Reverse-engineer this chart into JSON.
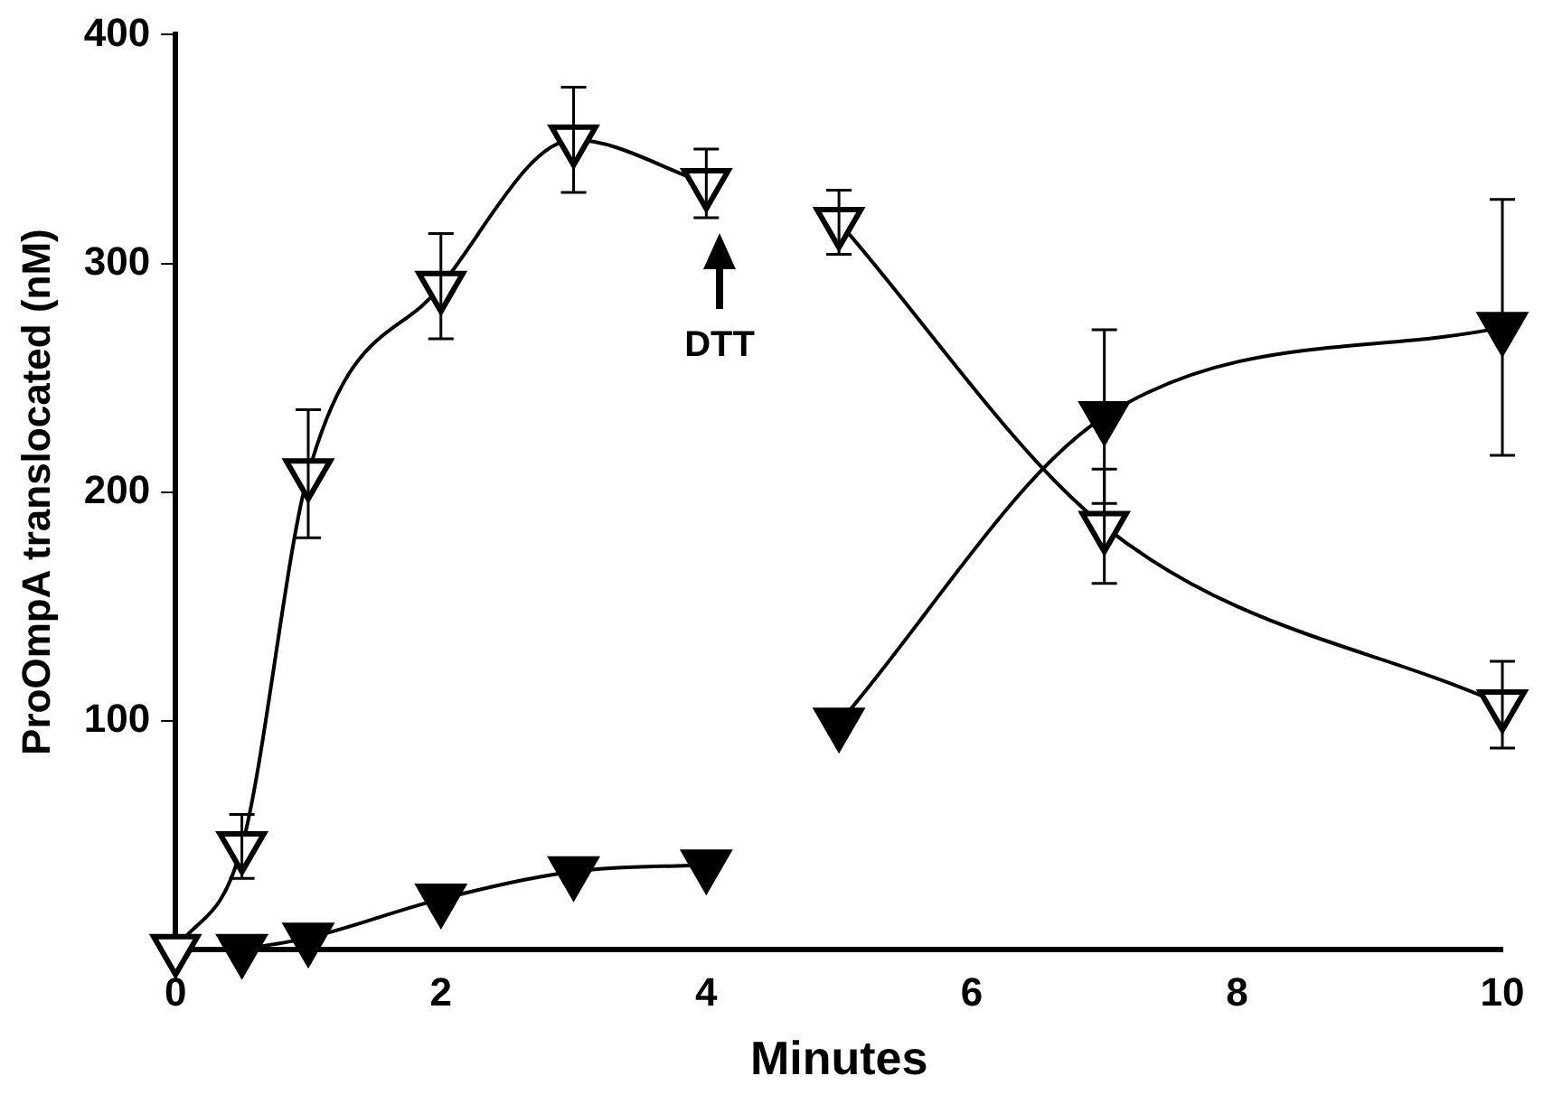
{
  "chart_data": {
    "type": "line",
    "xlabel": "Minutes",
    "ylabel": "ProOmpA translocated (nM)",
    "xlim": [
      0,
      10
    ],
    "xticks": [
      0,
      2,
      4,
      6,
      8,
      10
    ],
    "ylim": [
      0,
      400
    ],
    "yticks": [
      100,
      200,
      300,
      400
    ],
    "grid": false,
    "legend": false,
    "marker": "triangle",
    "line_style": "solid",
    "series": [
      {
        "color": "#ffffff",
        "x": [
          0,
          0.5,
          1,
          2,
          3,
          4
        ],
        "values": [
          0,
          45,
          208,
          290,
          354,
          335
        ],
        "errors": [
          null,
          14,
          28,
          23,
          23,
          15
        ]
      },
      {
        "color": "#000000",
        "x": [
          0.5,
          1,
          2,
          3,
          4
        ],
        "values": [
          0,
          5,
          22,
          34,
          37
        ]
      },
      {
        "color": "#ffffff",
        "x": [
          5,
          7,
          10
        ],
        "values": [
          318,
          185,
          107
        ],
        "errors": [
          14,
          25,
          19
        ]
      },
      {
        "color": "#000000",
        "x": [
          5,
          7,
          10
        ],
        "values": [
          99,
          233,
          272
        ],
        "errors": [
          null,
          38,
          56
        ]
      }
    ],
    "annotations": [
      "DTT"
    ]
  }
}
